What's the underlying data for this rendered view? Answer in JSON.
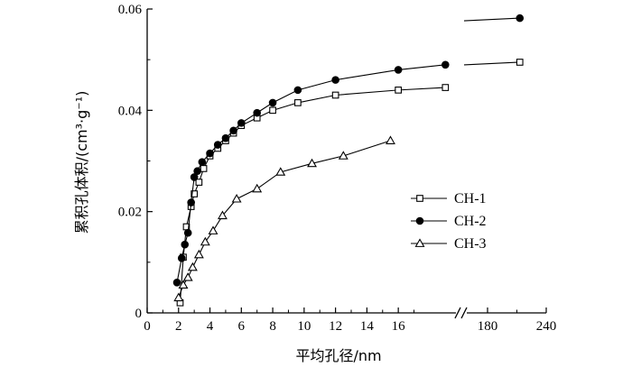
{
  "chart_data": {
    "type": "line",
    "xlabel": "平均孔径/nm",
    "ylabel": "累积孔体积/(cm³·g⁻¹)",
    "x_ticks_left": [
      "0",
      "2",
      "4",
      "6",
      "8",
      "10",
      "12",
      "14",
      "16"
    ],
    "x_ticks_right": [
      "180",
      "240"
    ],
    "y_ticks": [
      "0",
      "0.02",
      "0.04",
      "0.06"
    ],
    "x_axis_break": true,
    "xlim_left": [
      0,
      19.5
    ],
    "xlim_right": [
      140,
      240
    ],
    "ylim": [
      0,
      0.06
    ],
    "legend_position": "right-middle",
    "series": [
      {
        "name": "CH-1",
        "marker": "open-square",
        "points": [
          [
            2.1,
            0.002
          ],
          [
            2.3,
            0.011
          ],
          [
            2.5,
            0.017
          ],
          [
            2.8,
            0.021
          ],
          [
            3.0,
            0.0235
          ],
          [
            3.3,
            0.0258
          ],
          [
            3.6,
            0.0285
          ],
          [
            4.0,
            0.031
          ],
          [
            4.5,
            0.0325
          ],
          [
            5.0,
            0.034
          ],
          [
            5.5,
            0.0355
          ],
          [
            6.0,
            0.037
          ],
          [
            7.0,
            0.0385
          ],
          [
            8.0,
            0.04
          ],
          [
            9.6,
            0.0415
          ],
          [
            12.0,
            0.043
          ],
          [
            16.0,
            0.044
          ],
          [
            19.0,
            0.0445
          ],
          [
            213,
            0.0495
          ]
        ]
      },
      {
        "name": "CH-2",
        "marker": "filled-circle",
        "points": [
          [
            1.9,
            0.006
          ],
          [
            2.2,
            0.0108
          ],
          [
            2.4,
            0.0135
          ],
          [
            2.6,
            0.0158
          ],
          [
            2.8,
            0.0218
          ],
          [
            3.0,
            0.0268
          ],
          [
            3.2,
            0.028
          ],
          [
            3.5,
            0.0298
          ],
          [
            4.0,
            0.0315
          ],
          [
            4.5,
            0.0332
          ],
          [
            5.0,
            0.0345
          ],
          [
            5.5,
            0.036
          ],
          [
            6.0,
            0.0375
          ],
          [
            7.0,
            0.0395
          ],
          [
            8.0,
            0.0415
          ],
          [
            9.6,
            0.044
          ],
          [
            12.0,
            0.046
          ],
          [
            16.0,
            0.048
          ],
          [
            19.0,
            0.049
          ],
          [
            213,
            0.0582
          ]
        ]
      },
      {
        "name": "CH-3",
        "marker": "open-triangle",
        "points": [
          [
            2.0,
            0.003
          ],
          [
            2.3,
            0.0055
          ],
          [
            2.6,
            0.007
          ],
          [
            2.9,
            0.009
          ],
          [
            3.3,
            0.0115
          ],
          [
            3.7,
            0.014
          ],
          [
            4.2,
            0.0162
          ],
          [
            4.8,
            0.0192
          ],
          [
            5.7,
            0.0225
          ],
          [
            7.0,
            0.0245
          ],
          [
            8.5,
            0.0278
          ],
          [
            10.5,
            0.0295
          ],
          [
            12.5,
            0.031
          ],
          [
            15.5,
            0.034
          ]
        ]
      }
    ]
  }
}
